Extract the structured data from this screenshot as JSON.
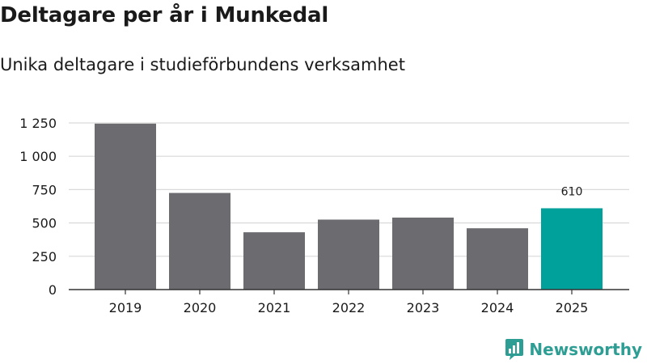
{
  "header": {
    "title": "Deltagare per år i Munkedal",
    "subtitle": "Unika deltagare i studieförbundens verksamhet"
  },
  "chart_data": {
    "type": "bar",
    "categories": [
      "2019",
      "2020",
      "2021",
      "2022",
      "2023",
      "2024",
      "2025"
    ],
    "values": [
      1245,
      725,
      430,
      525,
      540,
      460,
      610
    ],
    "ylim": [
      0,
      1250
    ],
    "yticks": [
      0,
      250,
      500,
      750,
      1000,
      1250
    ],
    "ytick_labels": [
      "0",
      "250",
      "500",
      "750",
      "1 000",
      "1 250"
    ],
    "grid": true,
    "data_labels": [
      {
        "category": "2025",
        "text": "610"
      }
    ],
    "colors": {
      "bar": "#6c6b70",
      "highlight": "#00a19a",
      "grid": "#d9d9d9",
      "axis": "#333333"
    },
    "highlight_category": "2025"
  },
  "brand": {
    "label": "Newsworthy",
    "icon": "newsworthy-logo-icon",
    "color": "#2e9e94"
  }
}
